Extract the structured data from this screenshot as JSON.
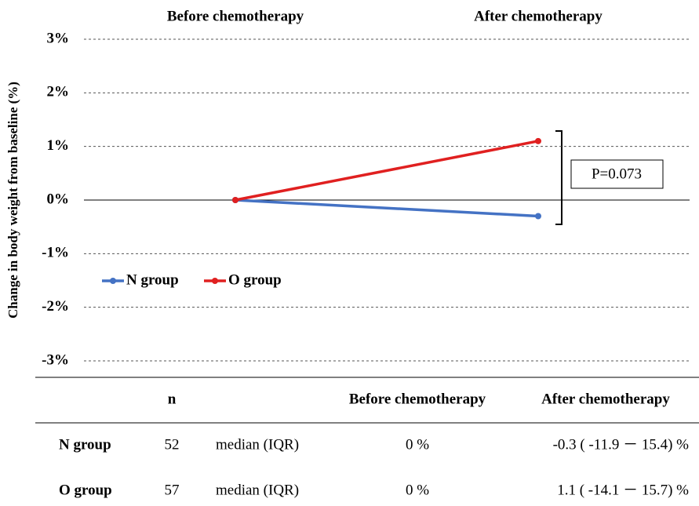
{
  "chart_data": {
    "type": "line",
    "y_label": "Change in body weight from baseline (%)",
    "categories": [
      "Before chemotherapy",
      "After chemotherapy"
    ],
    "series": [
      {
        "name": "N group",
        "color": "#4472c4",
        "values": [
          0,
          -0.3
        ]
      },
      {
        "name": "O group",
        "color": "#e02020",
        "values": [
          0,
          1.1
        ]
      }
    ],
    "ylim": [
      -3,
      3
    ],
    "yticks": [
      {
        "value": -3,
        "label": "-3%"
      },
      {
        "value": -2,
        "label": "-2%"
      },
      {
        "value": -1,
        "label": "-1%"
      },
      {
        "value": 0,
        "label": "0%"
      },
      {
        "value": 1,
        "label": "1%"
      },
      {
        "value": 2,
        "label": "2%"
      },
      {
        "value": 3,
        "label": "3%"
      }
    ],
    "grid": true,
    "legend": "left",
    "annotation": "P=0.073"
  },
  "table": {
    "columns": {
      "n": "n",
      "before": "Before chemotherapy",
      "after": "After chemotherapy"
    },
    "rows": [
      {
        "group": "N group",
        "n": 52,
        "stat": "median (IQR)",
        "before": "0 %",
        "after": "-0.3 ( -11.9 － 15.4) %"
      },
      {
        "group": "O group",
        "n": 57,
        "stat": "median (IQR)",
        "before": "0 %",
        "after": "1.1 ( -14.1 － 15.7) %"
      }
    ]
  }
}
